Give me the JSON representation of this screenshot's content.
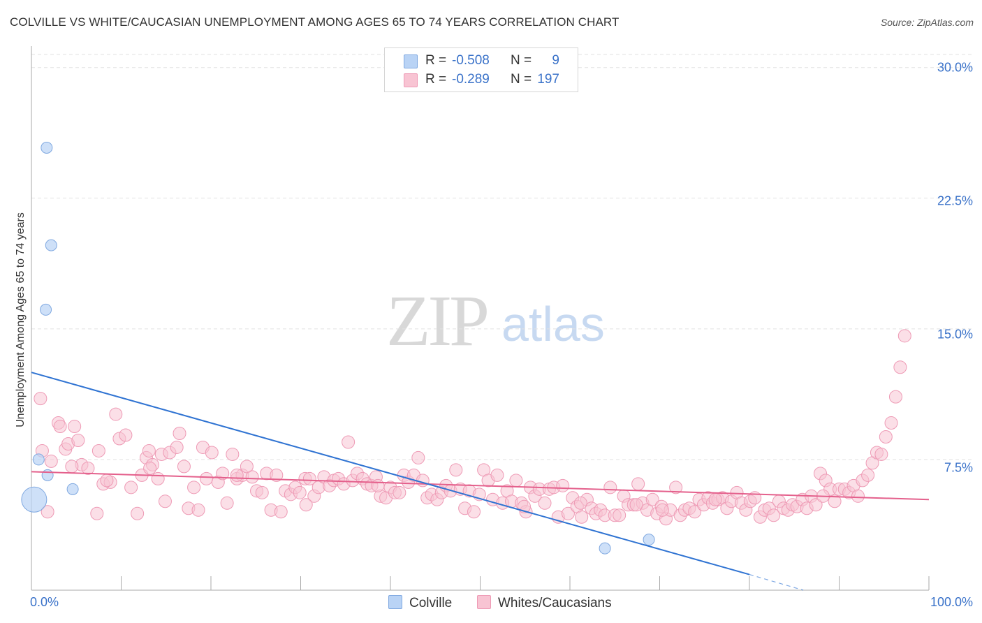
{
  "header": {
    "title": "COLVILLE VS WHITE/CAUCASIAN UNEMPLOYMENT AMONG AGES 65 TO 74 YEARS CORRELATION CHART",
    "source": "Source: ZipAtlas.com"
  },
  "watermark": {
    "zip": "ZIP",
    "atlas": "atlas"
  },
  "legend": {
    "rows": [
      {
        "r_label": "R =",
        "r_value": "-0.508",
        "n_label": "N =",
        "n_value": "9"
      },
      {
        "r_label": "R =",
        "r_value": "-0.289",
        "n_label": "N =",
        "n_value": "197"
      }
    ]
  },
  "bottom_legend": {
    "colville": "Colville",
    "whites": "Whites/Caucasians"
  },
  "colors": {
    "colville_fill": "#b9d3f5",
    "colville_stroke": "#7fa8e0",
    "colville_line": "#2f73d2",
    "whites_fill": "#f8c4d3",
    "whites_stroke": "#ee9ab5",
    "whites_line": "#e4608c",
    "tick_label": "#3a72c9",
    "grid": "#e2e2e2"
  },
  "chart_data": {
    "type": "scatter",
    "title": "COLVILLE VS WHITE/CAUCASIAN UNEMPLOYMENT AMONG AGES 65 TO 74 YEARS CORRELATION CHART",
    "xlabel": "",
    "ylabel": "Unemployment Among Ages 65 to 74 years",
    "xlim": [
      0,
      100
    ],
    "ylim": [
      0,
      30.75
    ],
    "y_ticks": [
      7.5,
      15.0,
      22.5,
      30.0
    ],
    "y_tick_labels": [
      "7.5%",
      "15.0%",
      "22.5%",
      "30.0%"
    ],
    "x_tick_labels": [
      "0.0%",
      "100.0%"
    ],
    "grid": true,
    "legend_position": "top-center",
    "series": [
      {
        "name": "Colville",
        "points": [
          [
            0.3,
            5.2
          ],
          [
            1.7,
            25.4
          ],
          [
            2.2,
            19.8
          ],
          [
            1.6,
            16.1
          ],
          [
            0.8,
            7.5
          ],
          [
            1.8,
            6.6
          ],
          [
            4.6,
            5.8
          ],
          [
            63.9,
            2.4
          ],
          [
            68.8,
            2.9
          ]
        ],
        "sizes": [
          36,
          16,
          16,
          16,
          16,
          16,
          16,
          16,
          16
        ],
        "trend": {
          "x": [
            0,
            80
          ],
          "y": [
            12.5,
            0.9
          ],
          "dashed_to": [
            86,
            0.0
          ]
        }
      },
      {
        "name": "Whites/Caucasians",
        "points": [
          [
            1,
            11.0
          ],
          [
            1.2,
            8.0
          ],
          [
            1.8,
            4.5
          ],
          [
            2.2,
            7.4
          ],
          [
            3,
            9.6
          ],
          [
            3.2,
            9.4
          ],
          [
            3.8,
            8.1
          ],
          [
            4.1,
            8.4
          ],
          [
            4.8,
            9.4
          ],
          [
            5.2,
            8.6
          ],
          [
            7.3,
            4.4
          ],
          [
            5.6,
            7.2
          ],
          [
            6.3,
            7.0
          ],
          [
            7.5,
            8.0
          ],
          [
            8,
            6.1
          ],
          [
            8.8,
            6.2
          ],
          [
            9.4,
            10.1
          ],
          [
            9.8,
            8.7
          ],
          [
            10.5,
            8.9
          ],
          [
            11.1,
            5.9
          ],
          [
            11.8,
            4.4
          ],
          [
            12.3,
            6.6
          ],
          [
            12.8,
            7.6
          ],
          [
            13.1,
            8.0
          ],
          [
            13.5,
            7.2
          ],
          [
            14.1,
            6.4
          ],
          [
            14.5,
            7.8
          ],
          [
            14.9,
            5.1
          ],
          [
            15.4,
            7.9
          ],
          [
            16.2,
            8.2
          ],
          [
            16.5,
            9.0
          ],
          [
            17,
            7.1
          ],
          [
            17.5,
            4.7
          ],
          [
            18.1,
            5.9
          ],
          [
            18.6,
            4.6
          ],
          [
            19.1,
            8.2
          ],
          [
            19.5,
            6.4
          ],
          [
            20.1,
            7.9
          ],
          [
            20.8,
            6.2
          ],
          [
            21.3,
            6.7
          ],
          [
            21.8,
            5.0
          ],
          [
            22.4,
            7.8
          ],
          [
            22.9,
            6.4
          ],
          [
            23.5,
            6.6
          ],
          [
            24,
            7.1
          ],
          [
            24.6,
            6.5
          ],
          [
            25.1,
            5.7
          ],
          [
            25.7,
            5.6
          ],
          [
            26.2,
            6.7
          ],
          [
            26.7,
            4.6
          ],
          [
            27.3,
            6.6
          ],
          [
            27.8,
            4.5
          ],
          [
            28.3,
            5.7
          ],
          [
            28.9,
            5.5
          ],
          [
            29.4,
            5.9
          ],
          [
            29.9,
            5.6
          ],
          [
            30.5,
            6.4
          ],
          [
            31,
            6.4
          ],
          [
            31.5,
            5.4
          ],
          [
            32,
            5.9
          ],
          [
            32.6,
            6.5
          ],
          [
            33.2,
            6.0
          ],
          [
            33.7,
            6.3
          ],
          [
            34.2,
            6.4
          ],
          [
            34.8,
            6.1
          ],
          [
            35.3,
            8.5
          ],
          [
            35.8,
            6.3
          ],
          [
            36.3,
            6.7
          ],
          [
            36.9,
            6.4
          ],
          [
            37.4,
            6.1
          ],
          [
            37.9,
            6.0
          ],
          [
            38.4,
            6.5
          ],
          [
            38.9,
            5.4
          ],
          [
            39.5,
            5.3
          ],
          [
            40,
            5.9
          ],
          [
            40.5,
            5.6
          ],
          [
            41,
            5.6
          ],
          [
            41.5,
            6.6
          ],
          [
            42,
            6.2
          ],
          [
            42.6,
            6.6
          ],
          [
            43.1,
            7.6
          ],
          [
            43.6,
            6.3
          ],
          [
            44.1,
            5.3
          ],
          [
            44.6,
            5.5
          ],
          [
            45.2,
            5.2
          ],
          [
            45.7,
            5.6
          ],
          [
            46.2,
            6.0
          ],
          [
            46.7,
            5.7
          ],
          [
            47.3,
            6.9
          ],
          [
            47.8,
            5.8
          ],
          [
            48.3,
            4.7
          ],
          [
            48.8,
            5.7
          ],
          [
            49.3,
            4.5
          ],
          [
            49.9,
            5.5
          ],
          [
            50.4,
            6.9
          ],
          [
            50.9,
            6.3
          ],
          [
            51.4,
            5.2
          ],
          [
            51.9,
            6.6
          ],
          [
            52.5,
            5.0
          ],
          [
            53,
            5.7
          ],
          [
            53.5,
            5.1
          ],
          [
            54,
            6.3
          ],
          [
            54.6,
            5.0
          ],
          [
            55.1,
            4.5
          ],
          [
            55.6,
            5.9
          ],
          [
            56.1,
            5.4
          ],
          [
            56.6,
            5.8
          ],
          [
            57.2,
            5.0
          ],
          [
            57.7,
            5.8
          ],
          [
            58.2,
            5.9
          ],
          [
            58.7,
            4.2
          ],
          [
            59.2,
            6.0
          ],
          [
            59.8,
            4.4
          ],
          [
            60.3,
            5.3
          ],
          [
            60.8,
            4.8
          ],
          [
            61.3,
            4.2
          ],
          [
            61.9,
            5.2
          ],
          [
            62.4,
            4.7
          ],
          [
            62.9,
            4.4
          ],
          [
            63.4,
            4.6
          ],
          [
            63.9,
            4.3
          ],
          [
            64.5,
            5.9
          ],
          [
            65,
            4.3
          ],
          [
            65.5,
            4.3
          ],
          [
            66,
            5.4
          ],
          [
            66.5,
            4.9
          ],
          [
            67.1,
            4.9
          ],
          [
            67.6,
            6.1
          ],
          [
            68.1,
            5.0
          ],
          [
            68.6,
            4.6
          ],
          [
            69.2,
            5.2
          ],
          [
            69.7,
            4.4
          ],
          [
            70.2,
            4.8
          ],
          [
            70.7,
            4.1
          ],
          [
            71.2,
            4.6
          ],
          [
            71.8,
            5.9
          ],
          [
            72.3,
            4.3
          ],
          [
            72.8,
            4.6
          ],
          [
            73.3,
            4.7
          ],
          [
            73.9,
            4.5
          ],
          [
            74.4,
            5.2
          ],
          [
            74.9,
            4.9
          ],
          [
            75.4,
            5.3
          ],
          [
            75.9,
            5.0
          ],
          [
            76.5,
            5.2
          ],
          [
            77,
            5.3
          ],
          [
            77.5,
            4.7
          ],
          [
            78,
            5.1
          ],
          [
            78.6,
            5.6
          ],
          [
            79.1,
            5.0
          ],
          [
            79.6,
            4.6
          ],
          [
            80.1,
            5.1
          ],
          [
            80.6,
            5.3
          ],
          [
            81.2,
            4.2
          ],
          [
            81.7,
            4.6
          ],
          [
            82.2,
            4.7
          ],
          [
            82.7,
            4.3
          ],
          [
            83.3,
            5.1
          ],
          [
            83.8,
            4.7
          ],
          [
            84.3,
            4.6
          ],
          [
            84.8,
            4.9
          ],
          [
            85.3,
            4.8
          ],
          [
            85.9,
            5.2
          ],
          [
            86.4,
            4.7
          ],
          [
            86.9,
            5.4
          ],
          [
            87.4,
            4.9
          ],
          [
            87.9,
            6.7
          ],
          [
            88.5,
            6.3
          ],
          [
            89,
            5.8
          ],
          [
            89.5,
            5.1
          ],
          [
            90,
            5.8
          ],
          [
            90.6,
            5.8
          ],
          [
            91.1,
            5.6
          ],
          [
            91.6,
            6.0
          ],
          [
            92.1,
            5.4
          ],
          [
            92.6,
            6.3
          ],
          [
            93.2,
            6.6
          ],
          [
            93.7,
            7.3
          ],
          [
            94.2,
            7.9
          ],
          [
            94.7,
            7.8
          ],
          [
            95.2,
            8.8
          ],
          [
            95.8,
            9.6
          ],
          [
            96.3,
            11.1
          ],
          [
            96.8,
            12.8
          ],
          [
            97.3,
            14.6
          ],
          [
            76.2,
            5.2
          ],
          [
            70.3,
            4.6
          ],
          [
            61.2,
            5.0
          ],
          [
            54.9,
            4.8
          ],
          [
            38.6,
            6.0
          ],
          [
            30.6,
            4.9
          ],
          [
            22.9,
            6.6
          ],
          [
            13.2,
            7.0
          ],
          [
            8.4,
            6.3
          ],
          [
            4.5,
            7.1
          ],
          [
            88.2,
            5.4
          ],
          [
            67.4,
            4.9
          ]
        ],
        "trend": {
          "x": [
            0,
            100
          ],
          "y": [
            6.8,
            5.2
          ]
        }
      }
    ]
  }
}
